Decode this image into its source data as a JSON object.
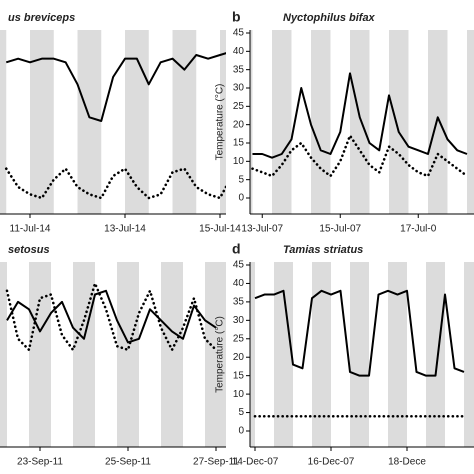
{
  "chart_data": [
    {
      "type": "line",
      "title": "us breviceps",
      "categories": [
        null,
        null,
        "11-Jul-14",
        null,
        null,
        null,
        null,
        null,
        null,
        null,
        "13-Jul-14",
        null,
        null,
        null,
        null,
        null,
        null,
        null,
        "15-Jul-14",
        null
      ],
      "series": [
        {
          "color": "#000000",
          "style": "solid",
          "values": [
            37,
            38,
            37,
            38,
            38,
            37,
            31,
            22,
            21,
            33,
            38,
            38,
            31,
            37,
            38,
            35,
            39,
            38,
            39,
            40
          ]
        },
        {
          "color": "#000000",
          "style": "dotted",
          "values": [
            8,
            3,
            1,
            0,
            5,
            8,
            3,
            1,
            0,
            6,
            8,
            3,
            0,
            1,
            7,
            8,
            3,
            1,
            0,
            6
          ]
        }
      ],
      "ylim": [
        0,
        45
      ]
    },
    {
      "type": "line",
      "label": "b",
      "title": "Nyctophilus bifax",
      "ylabel": "Temperature (°C)",
      "categories": [
        null,
        "13-Jul-07",
        null,
        null,
        null,
        null,
        null,
        null,
        null,
        "15-Jul-07",
        null,
        null,
        null,
        null,
        null,
        null,
        null,
        "17-Jul-0",
        null,
        null,
        null,
        null,
        null
      ],
      "series": [
        {
          "color": "#000000",
          "style": "solid",
          "values": [
            12,
            12,
            11,
            12,
            16,
            30,
            20,
            13,
            12,
            18,
            34,
            22,
            15,
            13,
            28,
            18,
            14,
            13,
            12,
            22,
            16,
            13,
            12
          ]
        },
        {
          "color": "#000000",
          "style": "dotted",
          "values": [
            8,
            7,
            6,
            9,
            13,
            15,
            11,
            8,
            6,
            10,
            17,
            13,
            9,
            7,
            14,
            12,
            9,
            7,
            6,
            12,
            10,
            8,
            6
          ]
        }
      ],
      "ylim": [
        0,
        45
      ],
      "yticks": [
        0,
        5,
        10,
        15,
        20,
        25,
        30,
        35,
        40,
        45
      ]
    },
    {
      "type": "line",
      "title": "setosus",
      "categories": [
        null,
        null,
        null,
        "23-Sep-11",
        null,
        null,
        null,
        null,
        null,
        null,
        null,
        "25-Sep-11",
        null,
        null,
        null,
        null,
        null,
        null,
        null,
        "27-Sep-11"
      ],
      "series": [
        {
          "color": "#000000",
          "style": "solid",
          "values": [
            30,
            35,
            33,
            27,
            32,
            35,
            28,
            25,
            37,
            38,
            30,
            24,
            25,
            33,
            30,
            27,
            25,
            34,
            30,
            28
          ]
        },
        {
          "color": "#000000",
          "style": "dotted",
          "values": [
            38,
            25,
            22,
            36,
            37,
            26,
            22,
            30,
            40,
            33,
            23,
            22,
            32,
            38,
            28,
            22,
            28,
            36,
            25,
            22
          ]
        }
      ],
      "ylim": [
        0,
        45
      ]
    },
    {
      "type": "line",
      "label": "d",
      "title": "Tamias striatus",
      "ylabel": "Temperature (°C)",
      "categories": [
        "14-Dec-07",
        null,
        null,
        null,
        null,
        null,
        null,
        null,
        "16-Dec-07",
        null,
        null,
        null,
        null,
        null,
        null,
        null,
        "18-Dece",
        null,
        null,
        null,
        null,
        null,
        null
      ],
      "series": [
        {
          "color": "#000000",
          "style": "solid",
          "values": [
            36,
            37,
            37,
            38,
            18,
            17,
            36,
            38,
            37,
            38,
            16,
            15,
            15,
            37,
            38,
            37,
            38,
            16,
            15,
            15,
            37,
            17,
            16
          ]
        },
        {
          "color": "#000000",
          "style": "dotted",
          "values": [
            4,
            4,
            4,
            4,
            4,
            4,
            4,
            4,
            4,
            4,
            4,
            4,
            4,
            4,
            4,
            4,
            4,
            4,
            4,
            4,
            4,
            4,
            4
          ]
        }
      ],
      "ylim": [
        0,
        45
      ],
      "yticks": [
        0,
        5,
        10,
        15,
        20,
        25,
        30,
        35,
        40,
        45
      ]
    }
  ]
}
